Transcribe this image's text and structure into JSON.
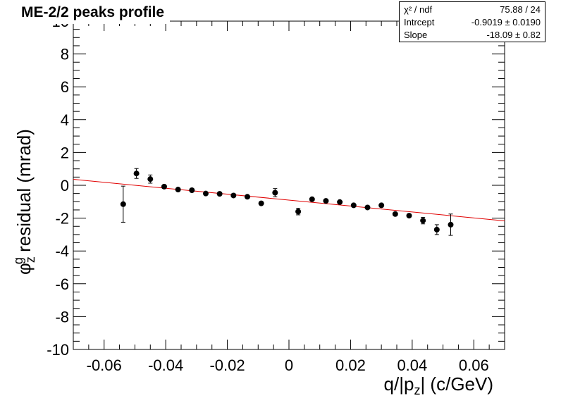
{
  "title": "ME-2/2 peaks profile",
  "stats": {
    "rows": [
      {
        "label": "χ² / ndf",
        "value": "75.88 / 24"
      },
      {
        "label": "Intrcept",
        "value": "-0.9019 ± 0.0190"
      },
      {
        "label": "Slope",
        "value": "-18.09 ± 0.82"
      }
    ]
  },
  "colors": {
    "fit": "#e00000",
    "points": "#000000",
    "axis": "#000000"
  },
  "chart_data": {
    "type": "scatter",
    "title": "ME-2/2 peaks profile",
    "xlabel": "q/|p_z| (c/GeV)",
    "ylabel": "φ_z^g residual (mrad)",
    "xlim": [
      -0.07,
      0.07
    ],
    "ylim": [
      -10,
      10
    ],
    "xticks": [
      -0.06,
      -0.04,
      -0.02,
      0,
      0.02,
      0.04,
      0.06
    ],
    "xtick_labels": [
      "-0.06",
      "-0.04",
      "-0.02",
      "0",
      "0.02",
      "0.04",
      "0.06"
    ],
    "yticks": [
      -10,
      -8,
      -6,
      -4,
      -2,
      0,
      2,
      4,
      6,
      8,
      10
    ],
    "ytick_labels": [
      "-10",
      "-8",
      "-6",
      "-4",
      "-2",
      "0",
      "2",
      "4",
      "6",
      "8",
      "10"
    ],
    "grid": false,
    "series": [
      {
        "points": [
          {
            "x": -0.0538,
            "y": -1.15,
            "err": 1.1
          },
          {
            "x": -0.0495,
            "y": 0.72,
            "err": 0.3
          },
          {
            "x": -0.045,
            "y": 0.38,
            "err": 0.25
          },
          {
            "x": -0.0405,
            "y": -0.08,
            "err": 0.1
          },
          {
            "x": -0.036,
            "y": -0.26,
            "err": 0.08
          },
          {
            "x": -0.0315,
            "y": -0.3,
            "err": 0.08
          },
          {
            "x": -0.027,
            "y": -0.5,
            "err": 0.08
          },
          {
            "x": -0.0225,
            "y": -0.52,
            "err": 0.07
          },
          {
            "x": -0.018,
            "y": -0.62,
            "err": 0.07
          },
          {
            "x": -0.0135,
            "y": -0.7,
            "err": 0.07
          },
          {
            "x": -0.009,
            "y": -1.1,
            "err": 0.08
          },
          {
            "x": -0.0045,
            "y": -0.45,
            "err": 0.25
          },
          {
            "x": 0.003,
            "y": -1.6,
            "err": 0.2
          },
          {
            "x": 0.0075,
            "y": -0.85,
            "err": 0.08
          },
          {
            "x": 0.012,
            "y": -0.95,
            "err": 0.07
          },
          {
            "x": 0.0165,
            "y": -1.02,
            "err": 0.07
          },
          {
            "x": 0.021,
            "y": -1.22,
            "err": 0.07
          },
          {
            "x": 0.0255,
            "y": -1.35,
            "err": 0.08
          },
          {
            "x": 0.03,
            "y": -1.22,
            "err": 0.08
          },
          {
            "x": 0.0345,
            "y": -1.75,
            "err": 0.1
          },
          {
            "x": 0.039,
            "y": -1.85,
            "err": 0.1
          },
          {
            "x": 0.0435,
            "y": -2.15,
            "err": 0.2
          },
          {
            "x": 0.048,
            "y": -2.7,
            "err": 0.3
          },
          {
            "x": 0.0525,
            "y": -2.4,
            "err": 0.65
          }
        ]
      }
    ],
    "fit": {
      "type": "linear",
      "intercept": -0.9019,
      "slope": -18.09
    }
  }
}
